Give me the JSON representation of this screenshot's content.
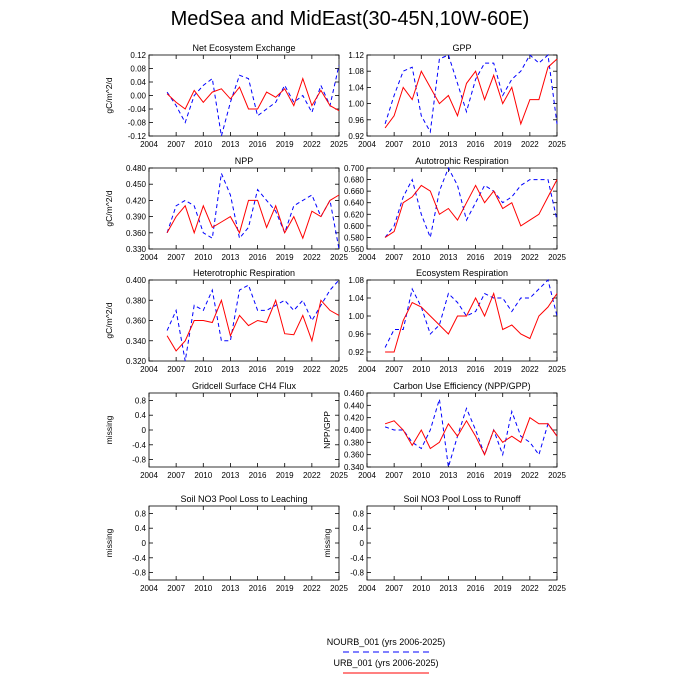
{
  "title": "MedSea and MidEast(30-45N,10W-60E)",
  "colors": {
    "nourb": "#0000ff",
    "urb": "#ff0000",
    "axis": "#000000"
  },
  "legend": {
    "entries": [
      {
        "label": "NOURB_001 (yrs 2006-2025)",
        "style": "dashed",
        "color": "#0000ff"
      },
      {
        "label": "URB_001 (yrs 2006-2025)",
        "style": "solid",
        "color": "#ff0000"
      }
    ]
  },
  "chart_data": [
    {
      "type": "line",
      "title": "Net Ecosystem Exchange",
      "ylabel": "gC/m^2/d",
      "xlim": [
        2004,
        2025
      ],
      "ylim": [
        -0.12,
        0.12
      ],
      "xticks": [
        "2004",
        "2007",
        "2010",
        "2013",
        "2016",
        "2019",
        "2022",
        "2025"
      ],
      "yticks": [
        "0.12",
        "0.08",
        "0.04",
        "0.00",
        "-0.04",
        "-0.08",
        "-0.12"
      ],
      "x": [
        2006,
        2007,
        2008,
        2009,
        2010,
        2011,
        2012,
        2013,
        2014,
        2015,
        2016,
        2017,
        2018,
        2019,
        2020,
        2021,
        2022,
        2023,
        2024,
        2025
      ],
      "series": [
        {
          "name": "NOURB_001",
          "values": [
            0.01,
            -0.03,
            -0.08,
            0.0,
            0.03,
            0.05,
            -0.12,
            -0.02,
            0.06,
            0.05,
            -0.06,
            -0.04,
            -0.02,
            0.03,
            -0.02,
            0.0,
            -0.05,
            0.03,
            -0.03,
            0.09
          ]
        },
        {
          "name": "URB_001",
          "values": [
            0.005,
            -0.02,
            -0.04,
            0.015,
            -0.02,
            0.01,
            0.02,
            -0.01,
            0.025,
            -0.04,
            -0.04,
            0.01,
            -0.005,
            0.02,
            -0.03,
            0.05,
            -0.03,
            0.015,
            -0.03,
            -0.045
          ]
        }
      ]
    },
    {
      "type": "line",
      "title": "GPP",
      "ylabel": "",
      "xlim": [
        2004,
        2025
      ],
      "ylim": [
        0.92,
        1.12
      ],
      "xticks": [
        "2004",
        "2007",
        "2010",
        "2013",
        "2016",
        "2019",
        "2022",
        "2025"
      ],
      "yticks": [
        "1.12",
        "1.08",
        "1.04",
        "1.00",
        "0.96",
        "0.92"
      ],
      "x": [
        2006,
        2007,
        2008,
        2009,
        2010,
        2011,
        2012,
        2013,
        2014,
        2015,
        2016,
        2017,
        2018,
        2019,
        2020,
        2021,
        2022,
        2023,
        2024,
        2025
      ],
      "series": [
        {
          "name": "NOURB_001",
          "values": [
            0.95,
            1.02,
            1.08,
            1.09,
            0.97,
            0.93,
            1.11,
            1.12,
            1.05,
            0.98,
            1.06,
            1.1,
            1.1,
            1.02,
            1.06,
            1.08,
            1.12,
            1.1,
            1.12,
            0.95
          ]
        },
        {
          "name": "URB_001",
          "values": [
            0.94,
            0.97,
            1.04,
            1.01,
            1.08,
            1.04,
            1.0,
            1.02,
            0.97,
            1.05,
            1.08,
            1.01,
            1.07,
            1.0,
            1.04,
            0.95,
            1.01,
            1.01,
            1.09,
            1.11
          ]
        }
      ]
    },
    {
      "type": "line",
      "title": "NPP",
      "ylabel": "gC/m^2/d",
      "xlim": [
        2004,
        2025
      ],
      "ylim": [
        0.33,
        0.48
      ],
      "xticks": [
        "2004",
        "2007",
        "2010",
        "2013",
        "2016",
        "2019",
        "2022",
        "2025"
      ],
      "yticks": [
        "0.480",
        "0.450",
        "0.420",
        "0.390",
        "0.360",
        "0.330"
      ],
      "x": [
        2006,
        2007,
        2008,
        2009,
        2010,
        2011,
        2012,
        2013,
        2014,
        2015,
        2016,
        2017,
        2018,
        2019,
        2020,
        2021,
        2022,
        2023,
        2024,
        2025
      ],
      "series": [
        {
          "name": "NOURB_001",
          "values": [
            0.36,
            0.41,
            0.42,
            0.41,
            0.36,
            0.35,
            0.47,
            0.43,
            0.35,
            0.37,
            0.44,
            0.42,
            0.4,
            0.36,
            0.41,
            0.42,
            0.43,
            0.39,
            0.42,
            0.33
          ]
        },
        {
          "name": "URB_001",
          "values": [
            0.36,
            0.39,
            0.41,
            0.36,
            0.41,
            0.37,
            0.38,
            0.39,
            0.36,
            0.42,
            0.42,
            0.37,
            0.41,
            0.36,
            0.39,
            0.35,
            0.4,
            0.39,
            0.42,
            0.43
          ]
        }
      ]
    },
    {
      "type": "line",
      "title": "Autotrophic Respiration",
      "ylabel": "",
      "xlim": [
        2004,
        2025
      ],
      "ylim": [
        0.56,
        0.7
      ],
      "xticks": [
        "2004",
        "2007",
        "2010",
        "2013",
        "2016",
        "2019",
        "2022",
        "2025"
      ],
      "yticks": [
        "0.700",
        "0.680",
        "0.660",
        "0.640",
        "0.620",
        "0.600",
        "0.580",
        "0.560"
      ],
      "x": [
        2006,
        2007,
        2008,
        2009,
        2010,
        2011,
        2012,
        2013,
        2014,
        2015,
        2016,
        2017,
        2018,
        2019,
        2020,
        2021,
        2022,
        2023,
        2024,
        2025
      ],
      "series": [
        {
          "name": "NOURB_001",
          "values": [
            0.58,
            0.6,
            0.65,
            0.68,
            0.62,
            0.58,
            0.66,
            0.7,
            0.67,
            0.61,
            0.64,
            0.67,
            0.66,
            0.64,
            0.65,
            0.67,
            0.68,
            0.68,
            0.68,
            0.61
          ]
        },
        {
          "name": "URB_001",
          "values": [
            0.58,
            0.59,
            0.64,
            0.65,
            0.67,
            0.66,
            0.62,
            0.63,
            0.61,
            0.64,
            0.67,
            0.64,
            0.66,
            0.63,
            0.64,
            0.6,
            0.61,
            0.62,
            0.65,
            0.68
          ]
        }
      ]
    },
    {
      "type": "line",
      "title": "Heterotrophic Respiration",
      "ylabel": "gC/m^2/d",
      "xlim": [
        2004,
        2025
      ],
      "ylim": [
        0.32,
        0.4
      ],
      "xticks": [
        "2004",
        "2007",
        "2010",
        "2013",
        "2016",
        "2019",
        "2022",
        "2025"
      ],
      "yticks": [
        "0.400",
        "0.380",
        "0.360",
        "0.340",
        "0.320"
      ],
      "x": [
        2006,
        2007,
        2008,
        2009,
        2010,
        2011,
        2012,
        2013,
        2014,
        2015,
        2016,
        2017,
        2018,
        2019,
        2020,
        2021,
        2022,
        2023,
        2024,
        2025
      ],
      "series": [
        {
          "name": "NOURB_001",
          "values": [
            0.35,
            0.37,
            0.32,
            0.375,
            0.37,
            0.39,
            0.34,
            0.34,
            0.39,
            0.395,
            0.37,
            0.37,
            0.375,
            0.38,
            0.37,
            0.38,
            0.36,
            0.375,
            0.39,
            0.4
          ]
        },
        {
          "name": "URB_001",
          "values": [
            0.345,
            0.33,
            0.34,
            0.36,
            0.36,
            0.358,
            0.38,
            0.345,
            0.365,
            0.355,
            0.36,
            0.358,
            0.38,
            0.347,
            0.346,
            0.365,
            0.34,
            0.38,
            0.37,
            0.365
          ]
        }
      ]
    },
    {
      "type": "line",
      "title": "Ecosystem Respiration",
      "ylabel": "",
      "xlim": [
        2004,
        2025
      ],
      "ylim": [
        0.9,
        1.08
      ],
      "xticks": [
        "2004",
        "2007",
        "2010",
        "2013",
        "2016",
        "2019",
        "2022",
        "2025"
      ],
      "yticks": [
        "1.08",
        "1.04",
        "1.00",
        "0.96",
        "0.92"
      ],
      "x": [
        2006,
        2007,
        2008,
        2009,
        2010,
        2011,
        2012,
        2013,
        2014,
        2015,
        2016,
        2017,
        2018,
        2019,
        2020,
        2021,
        2022,
        2023,
        2024,
        2025
      ],
      "series": [
        {
          "name": "NOURB_001",
          "values": [
            0.93,
            0.97,
            0.97,
            1.06,
            1.02,
            0.96,
            0.98,
            1.05,
            1.03,
            1.0,
            1.01,
            1.05,
            1.04,
            1.04,
            1.01,
            1.04,
            1.04,
            1.06,
            1.08,
            1.0
          ]
        },
        {
          "name": "URB_001",
          "values": [
            0.92,
            0.92,
            0.99,
            1.03,
            1.02,
            1.0,
            0.98,
            0.96,
            1.0,
            1.0,
            1.04,
            1.0,
            1.05,
            0.97,
            0.98,
            0.96,
            0.95,
            1.0,
            1.02,
            1.05
          ]
        }
      ]
    },
    {
      "type": "line",
      "title": "Gridcell Surface CH4 Flux",
      "ylabel": "missing",
      "xlim": [
        2004,
        2025
      ],
      "ylim": [
        -1,
        1
      ],
      "xticks": [
        "2004",
        "2007",
        "2010",
        "2013",
        "2016",
        "2019",
        "2022",
        "2025"
      ],
      "yticks": [
        "0.8",
        "0.4",
        "0",
        "-0.4",
        "-0.8"
      ],
      "x": [],
      "series": []
    },
    {
      "type": "line",
      "title": "Carbon Use Efficiency (NPP/GPP)",
      "ylabel": "NPP/GPP",
      "xlim": [
        2004,
        2025
      ],
      "ylim": [
        0.34,
        0.46
      ],
      "xticks": [
        "2004",
        "2007",
        "2010",
        "2013",
        "2016",
        "2019",
        "2022",
        "2025"
      ],
      "yticks": [
        "0.460",
        "0.440",
        "0.420",
        "0.400",
        "0.380",
        "0.360",
        "0.340"
      ],
      "x": [
        2006,
        2007,
        2008,
        2009,
        2010,
        2011,
        2012,
        2013,
        2014,
        2015,
        2016,
        2017,
        2018,
        2019,
        2020,
        2021,
        2022,
        2023,
        2024,
        2025
      ],
      "series": [
        {
          "name": "NOURB_001",
          "values": [
            0.405,
            0.4,
            0.4,
            0.38,
            0.37,
            0.4,
            0.45,
            0.34,
            0.39,
            0.435,
            0.4,
            0.36,
            0.4,
            0.36,
            0.43,
            0.39,
            0.38,
            0.36,
            0.41,
            0.39
          ]
        },
        {
          "name": "URB_001",
          "values": [
            0.41,
            0.415,
            0.4,
            0.375,
            0.4,
            0.37,
            0.38,
            0.41,
            0.39,
            0.415,
            0.39,
            0.36,
            0.4,
            0.38,
            0.39,
            0.38,
            0.42,
            0.41,
            0.41,
            0.39
          ]
        }
      ]
    },
    {
      "type": "line",
      "title": "Soil NO3 Pool Loss to Leaching",
      "ylabel": "missing",
      "xlim": [
        2004,
        2025
      ],
      "ylim": [
        -1,
        1
      ],
      "xticks": [
        "2004",
        "2007",
        "2010",
        "2013",
        "2016",
        "2019",
        "2022",
        "2025"
      ],
      "yticks": [
        "0.8",
        "0.4",
        "0",
        "-0.4",
        "-0.8"
      ],
      "x": [],
      "series": []
    },
    {
      "type": "line",
      "title": "Soil NO3 Pool Loss to Runoff",
      "ylabel": "missing",
      "xlim": [
        2004,
        2025
      ],
      "ylim": [
        -1,
        1
      ],
      "xticks": [
        "2004",
        "2007",
        "2010",
        "2013",
        "2016",
        "2019",
        "2022",
        "2025"
      ],
      "yticks": [
        "0.8",
        "0.4",
        "0",
        "-0.4",
        "-0.8"
      ],
      "x": [],
      "series": []
    }
  ]
}
